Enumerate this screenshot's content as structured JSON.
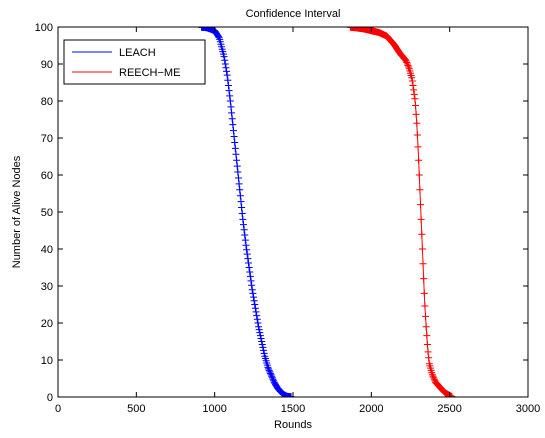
{
  "chart_data": {
    "type": "line",
    "title": "Confidence Interval",
    "xlabel": "Rounds",
    "ylabel": "Number of Alive Nodes",
    "xlim": [
      0,
      3000
    ],
    "ylim": [
      0,
      100
    ],
    "xticks": [
      0,
      500,
      1000,
      1500,
      2000,
      2500,
      3000
    ],
    "yticks": [
      0,
      10,
      20,
      30,
      40,
      50,
      60,
      70,
      80,
      90,
      100
    ],
    "grid": false,
    "legend_position": "top-left",
    "error_marker": "+",
    "series": [
      {
        "name": "LEACH",
        "color": "#0000ff",
        "x": [
          0,
          900,
          950,
          1000,
          1030,
          1060,
          1080,
          1100,
          1120,
          1140,
          1160,
          1180,
          1200,
          1220,
          1240,
          1260,
          1280,
          1300,
          1320,
          1340,
          1360,
          1380,
          1400,
          1420,
          1440,
          1460,
          1500,
          3000
        ],
        "y": [
          100,
          100,
          99.8,
          99,
          97,
          92,
          87,
          80,
          72,
          64,
          56,
          48,
          41,
          35,
          29,
          24,
          19,
          15,
          11,
          8,
          6,
          4,
          2.5,
          1.5,
          0.7,
          0.2,
          0,
          0
        ]
      },
      {
        "name": "REECH−ME",
        "color": "#ff0000",
        "x": [
          0,
          1850,
          1900,
          1950,
          2000,
          2050,
          2100,
          2150,
          2180,
          2200,
          2220,
          2240,
          2260,
          2280,
          2290,
          2300,
          2310,
          2320,
          2330,
          2340,
          2350,
          2360,
          2370,
          2390,
          2410,
          2440,
          2470,
          2500,
          2520,
          3000
        ],
        "y": [
          100,
          100,
          99.8,
          99.5,
          99,
          98.5,
          97.5,
          95,
          93,
          92,
          91,
          89,
          86,
          80,
          74,
          66,
          56,
          46,
          36,
          26,
          19,
          13,
          9,
          6,
          4,
          2.5,
          1.2,
          0.4,
          0,
          0
        ]
      }
    ]
  }
}
